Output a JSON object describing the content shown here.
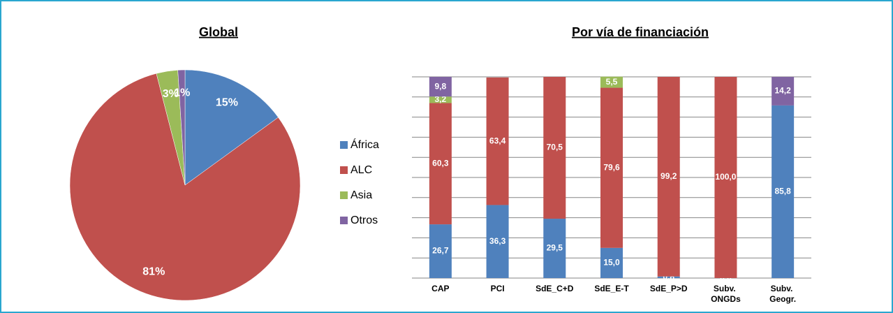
{
  "chart_data": [
    {
      "type": "pie",
      "title": "Global",
      "values": [
        15,
        81,
        3,
        1
      ],
      "value_labels": [
        "15%",
        "81%",
        "3%",
        "1%"
      ],
      "colors": [
        "#4f81bd",
        "#c0504d",
        "#9bbb59",
        "#8064a2"
      ]
    },
    {
      "type": "stacked_bar",
      "title": "Por vía de financiación",
      "categories": [
        "CAP",
        "PCI",
        "SdE_C+D",
        "SdE_E-T",
        "SdE_P>D",
        "Subv. ONGDs",
        "Subv. Geogr."
      ],
      "series": [
        {
          "name": "África",
          "color": "#4f81bd",
          "values": [
            26.7,
            36.3,
            29.5,
            15.0,
            0.8,
            0.0,
            85.8
          ],
          "value_labels": [
            "26,7",
            "36,3",
            "29,5",
            "15,0",
            "0,8",
            "0,0",
            "85,8"
          ]
        },
        {
          "name": "ALC",
          "color": "#c0504d",
          "values": [
            60.3,
            63.4,
            70.5,
            79.6,
            99.2,
            100.0,
            null
          ],
          "value_labels": [
            "60,3",
            "63,4",
            "70,5",
            "79,6",
            "99,2",
            "100,0",
            null
          ]
        },
        {
          "name": "Asia",
          "color": "#9bbb59",
          "values": [
            3.2,
            null,
            null,
            5.5,
            null,
            null,
            null
          ],
          "value_labels": [
            "3,2",
            null,
            null,
            "5,5",
            null,
            null,
            null
          ]
        },
        {
          "name": "Otros",
          "color": "#8064a2",
          "values": [
            9.8,
            null,
            null,
            null,
            null,
            null,
            14.2
          ],
          "value_labels": [
            "9,8",
            null,
            null,
            null,
            null,
            null,
            "14,2"
          ]
        }
      ],
      "ylim": [
        0,
        100
      ],
      "yticks": [
        0,
        10,
        20,
        30,
        40,
        50,
        60,
        70,
        80,
        90,
        100
      ],
      "grid": true
    }
  ]
}
